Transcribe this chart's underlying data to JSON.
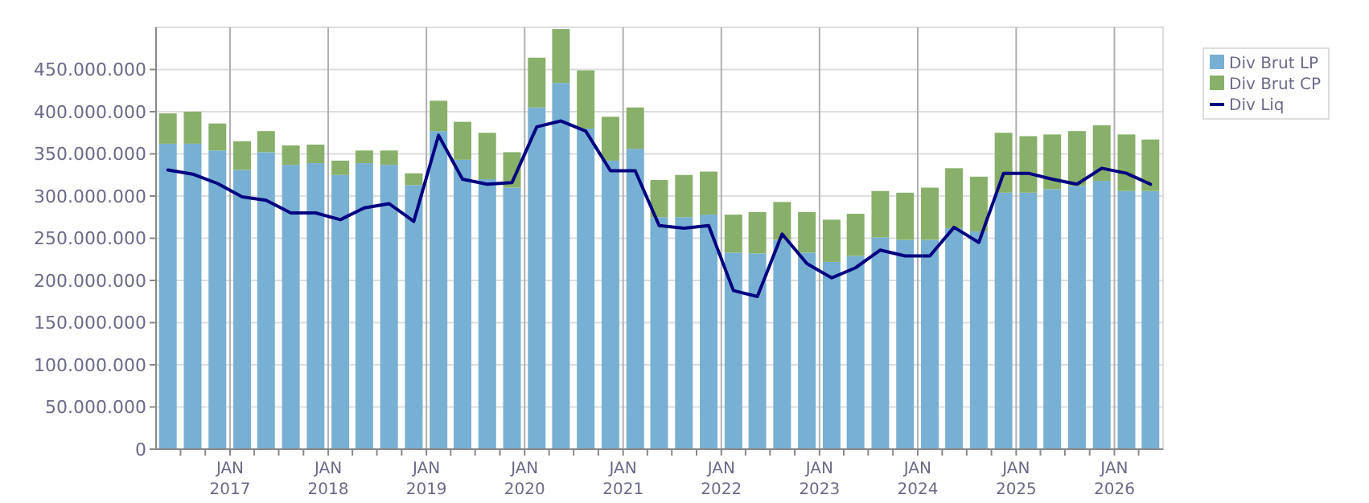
{
  "chart_data": {
    "type": "bar",
    "stacked": true,
    "x": [
      "2016-05-15",
      "2016-08-15",
      "2016-11-15",
      "2017-02-15",
      "2017-05-15",
      "2017-08-15",
      "2017-11-15",
      "2018-02-15",
      "2018-05-15",
      "2018-08-15",
      "2018-11-15",
      "2019-02-15",
      "2019-05-15",
      "2019-08-15",
      "2019-11-15",
      "2020-02-15",
      "2020-05-15",
      "2020-08-15",
      "2020-11-15",
      "2021-02-15",
      "2021-05-15",
      "2021-08-15",
      "2021-11-15",
      "2022-02-15",
      "2022-05-15",
      "2022-08-15",
      "2022-11-15",
      "2023-02-15",
      "2023-05-15",
      "2023-08-15",
      "2023-11-15",
      "2024-02-15",
      "2024-05-15",
      "2024-08-15",
      "2024-11-15",
      "2025-02-15",
      "2025-05-15",
      "2025-08-15",
      "2025-11-15",
      "2026-02-15",
      "2026-05-15"
    ],
    "series": [
      {
        "name": "Div Brut LP",
        "type": "bar",
        "color": "#78b0d3",
        "values": [
          362000000,
          362000000,
          354000000,
          331000000,
          352000000,
          337000000,
          339000000,
          325000000,
          339000000,
          337000000,
          313000000,
          377000000,
          343000000,
          320000000,
          310000000,
          405000000,
          434000000,
          380000000,
          342000000,
          356000000,
          275000000,
          275000000,
          278000000,
          233000000,
          232000000,
          248000000,
          233000000,
          222000000,
          229000000,
          251000000,
          248000000,
          248000000,
          262000000,
          258000000,
          304000000,
          304000000,
          308000000,
          312000000,
          318000000,
          306000000,
          306000000
        ]
      },
      {
        "name": "Div Brut CP",
        "type": "bar",
        "color": "#88b06a",
        "values": [
          36000000,
          38000000,
          32000000,
          34000000,
          25000000,
          23000000,
          22000000,
          17000000,
          15000000,
          17000000,
          14000000,
          36000000,
          45000000,
          55000000,
          42000000,
          59000000,
          64000000,
          69000000,
          52000000,
          49000000,
          44000000,
          50000000,
          51000000,
          45000000,
          49000000,
          45000000,
          48000000,
          50000000,
          50000000,
          55000000,
          56000000,
          62000000,
          71000000,
          65000000,
          71000000,
          67000000,
          65000000,
          65000000,
          66000000,
          67000000,
          61000000
        ]
      },
      {
        "name": "Div Liq",
        "type": "line",
        "color": "#000080",
        "values": [
          331000000,
          326000000,
          315000000,
          299000000,
          295000000,
          280000000,
          280000000,
          272000000,
          286000000,
          291000000,
          270000000,
          372000000,
          320000000,
          314000000,
          316000000,
          382000000,
          389000000,
          377000000,
          330000000,
          330000000,
          265000000,
          262000000,
          265000000,
          188000000,
          181000000,
          255000000,
          220000000,
          203000000,
          215000000,
          236000000,
          229000000,
          229000000,
          263000000,
          245000000,
          327000000,
          327000000,
          320000000,
          314000000,
          333000000,
          327000000,
          314000000
        ]
      }
    ],
    "xlim": [
      "2016-04-01",
      "2026-07-01"
    ],
    "xticks": [
      {
        "value": "2016-07-01",
        "label": null
      },
      {
        "value": "2016-10-01",
        "label": null
      },
      {
        "value": "2017-01-01",
        "label": "JAN\n2017"
      },
      {
        "value": "2017-04-01",
        "label": null
      },
      {
        "value": "2017-07-01",
        "label": null
      },
      {
        "value": "2017-10-01",
        "label": null
      },
      {
        "value": "2018-01-01",
        "label": "JAN\n2018"
      },
      {
        "value": "2018-04-01",
        "label": null
      },
      {
        "value": "2018-07-01",
        "label": null
      },
      {
        "value": "2018-10-01",
        "label": null
      },
      {
        "value": "2019-01-01",
        "label": "JAN\n2019"
      },
      {
        "value": "2019-04-01",
        "label": null
      },
      {
        "value": "2019-07-01",
        "label": null
      },
      {
        "value": "2019-10-01",
        "label": null
      },
      {
        "value": "2020-01-01",
        "label": "JAN\n2020"
      },
      {
        "value": "2020-04-01",
        "label": null
      },
      {
        "value": "2020-07-01",
        "label": null
      },
      {
        "value": "2020-10-01",
        "label": null
      },
      {
        "value": "2021-01-01",
        "label": "JAN\n2021"
      },
      {
        "value": "2021-04-01",
        "label": null
      },
      {
        "value": "2021-07-01",
        "label": null
      },
      {
        "value": "2021-10-01",
        "label": null
      },
      {
        "value": "2022-01-01",
        "label": "JAN\n2022"
      },
      {
        "value": "2022-04-01",
        "label": null
      },
      {
        "value": "2022-07-01",
        "label": null
      },
      {
        "value": "2022-10-01",
        "label": null
      },
      {
        "value": "2023-01-01",
        "label": "JAN\n2023"
      },
      {
        "value": "2023-04-01",
        "label": null
      },
      {
        "value": "2023-07-01",
        "label": null
      },
      {
        "value": "2023-10-01",
        "label": null
      },
      {
        "value": "2024-01-01",
        "label": "JAN\n2024"
      },
      {
        "value": "2024-04-01",
        "label": null
      },
      {
        "value": "2024-07-01",
        "label": null
      },
      {
        "value": "2024-10-01",
        "label": null
      },
      {
        "value": "2025-01-01",
        "label": "JAN\n2025"
      },
      {
        "value": "2025-04-01",
        "label": null
      },
      {
        "value": "2025-07-01",
        "label": null
      },
      {
        "value": "2025-10-01",
        "label": null
      },
      {
        "value": "2026-01-01",
        "label": "JAN\n2026"
      },
      {
        "value": "2026-04-01",
        "label": null
      }
    ],
    "ylim": [
      0,
      500000000
    ],
    "yticks": [
      {
        "value": 0,
        "label": "0"
      },
      {
        "value": 50000000,
        "label": "50.000.000"
      },
      {
        "value": 100000000,
        "label": "100.000.000"
      },
      {
        "value": 150000000,
        "label": "150.000.000"
      },
      {
        "value": 200000000,
        "label": "200.000.000"
      },
      {
        "value": 250000000,
        "label": "250.000.000"
      },
      {
        "value": 300000000,
        "label": "300.000.000"
      },
      {
        "value": 350000000,
        "label": "350.000.000"
      },
      {
        "value": 400000000,
        "label": "400.000.000"
      },
      {
        "value": 450000000,
        "label": "450.000.000"
      }
    ],
    "grid": true,
    "legend": "top right",
    "marker": "none",
    "line_style": "solid"
  }
}
